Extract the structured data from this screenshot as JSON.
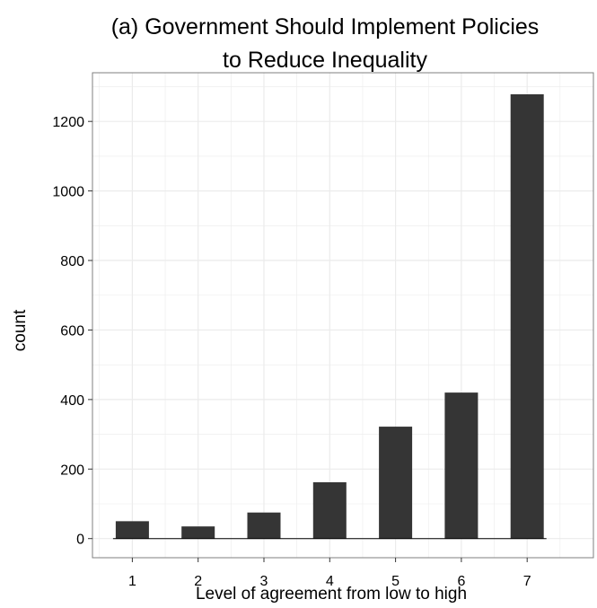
{
  "chart_data": {
    "type": "bar",
    "title": "(a) Government Should Implement Policies\nto Reduce Inequality",
    "xlabel": "Level of agreement from low to high",
    "ylabel": "count",
    "categories": [
      "1",
      "2",
      "3",
      "4",
      "5",
      "6",
      "7"
    ],
    "values": [
      50,
      35,
      75,
      162,
      322,
      420,
      1278
    ],
    "y_ticks": [
      "0",
      "200",
      "400",
      "600",
      "800",
      "1000",
      "1200"
    ],
    "ylim": [
      -55,
      1340
    ],
    "grid": true,
    "bar_color": "#353535",
    "grid_color": "#ebebeb",
    "panel_border_color": "#7f7f7f"
  }
}
